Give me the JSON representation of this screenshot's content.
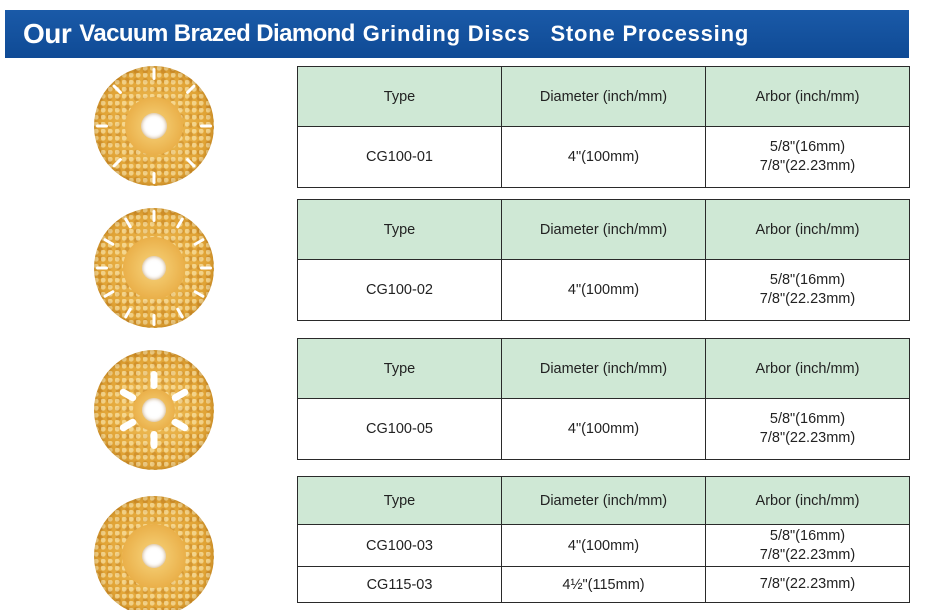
{
  "banner": {
    "part1": "Our",
    "part2": "Vacuum Brazed Diamond",
    "part3": "Grinding Discs",
    "part4": "Stone Processing",
    "color": "#1356a3"
  },
  "tables": [
    {
      "headers": {
        "type": "Type",
        "diameter": "Diameter (inch/mm)",
        "arbor": "Arbor (inch/mm)"
      },
      "rows": [
        {
          "type": "CG100-01",
          "diameter": "4\"(100mm)",
          "arbor_line1": "5/8\"(16mm)",
          "arbor_line2": "7/8\"(22.23mm)"
        }
      ]
    },
    {
      "headers": {
        "type": "Type",
        "diameter": "Diameter (inch/mm)",
        "arbor": "Arbor (inch/mm)"
      },
      "rows": [
        {
          "type": "CG100-02",
          "diameter": "4\"(100mm)",
          "arbor_line1": "5/8\"(16mm)",
          "arbor_line2": "7/8\"(22.23mm)"
        }
      ]
    },
    {
      "headers": {
        "type": "Type",
        "diameter": "Diameter (inch/mm)",
        "arbor": "Arbor (inch/mm)"
      },
      "rows": [
        {
          "type": "CG100-05",
          "diameter": "4\"(100mm)",
          "arbor_line1": "5/8\"(16mm)",
          "arbor_line2": "7/8\"(22.23mm)"
        }
      ]
    },
    {
      "headers": {
        "type": "Type",
        "diameter": "Diameter (inch/mm)",
        "arbor": "Arbor (inch/mm)"
      },
      "rows": [
        {
          "type": "CG100-03",
          "diameter": "4\"(100mm)",
          "arbor_line1": "5/8\"(16mm)",
          "arbor_line2": "7/8\"(22.23mm)"
        },
        {
          "type": "CG115-03",
          "diameter": "4½\"(115mm)",
          "arbor_line1": "7/8\"(22.23mm)",
          "arbor_line2": ""
        }
      ]
    }
  ],
  "colors": {
    "header_fill": "#cfe8d5",
    "border": "#2a2a2a",
    "disc_gold": "#e3a73a"
  }
}
